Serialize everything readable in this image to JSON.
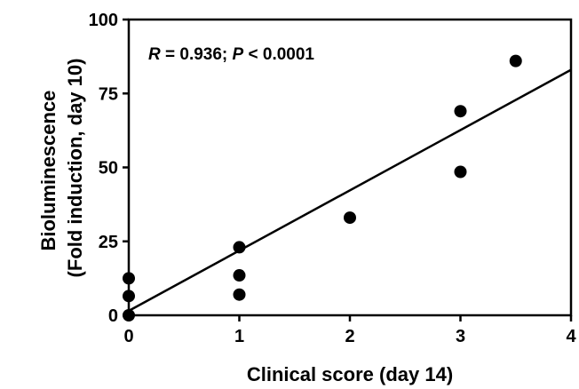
{
  "chart_data": {
    "type": "scatter",
    "xlabel": "Clinical score (day 14)",
    "ylabel_lines": [
      "Bioluminescence",
      "(Fold induction, day 10)"
    ],
    "xlim": [
      0,
      4
    ],
    "ylim": [
      0,
      100
    ],
    "xticks": [
      0,
      1,
      2,
      3,
      4
    ],
    "yticks": [
      0,
      25,
      50,
      75,
      100
    ],
    "grid": false,
    "points": [
      {
        "x": 0,
        "y": 0
      },
      {
        "x": 0,
        "y": 6.5
      },
      {
        "x": 0,
        "y": 12.5
      },
      {
        "x": 1,
        "y": 7
      },
      {
        "x": 1,
        "y": 13.5
      },
      {
        "x": 1,
        "y": 23
      },
      {
        "x": 2,
        "y": 33
      },
      {
        "x": 3,
        "y": 48.5
      },
      {
        "x": 3,
        "y": 69
      },
      {
        "x": 3.5,
        "y": 86
      }
    ],
    "fit_line": {
      "x": [
        0,
        4
      ],
      "y": [
        1.5,
        83
      ]
    },
    "annotation": {
      "parts": [
        {
          "text": "R",
          "italic": true
        },
        {
          "text": " = 0.936; ",
          "italic": false
        },
        {
          "text": "P",
          "italic": true
        },
        {
          "text": " < 0.0001",
          "italic": false
        }
      ]
    },
    "colors": {
      "points": "#000000",
      "line": "#000000",
      "axes": "#000000"
    }
  }
}
